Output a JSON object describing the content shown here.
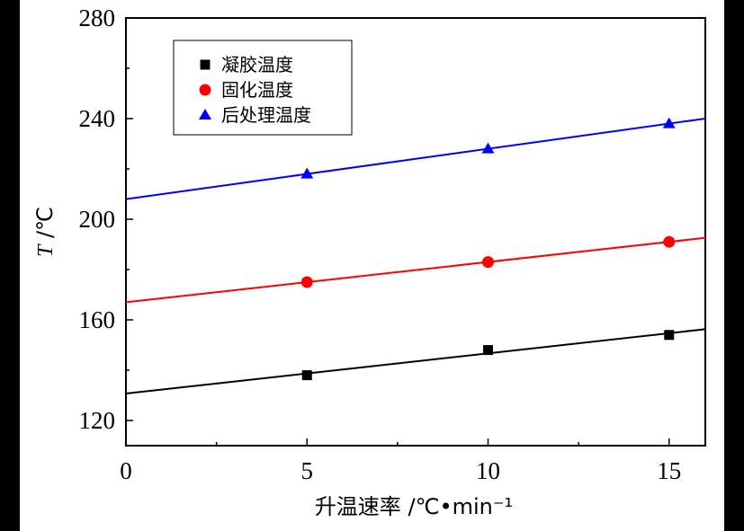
{
  "chart_data": {
    "type": "scatter",
    "xlabel": "升温速率 /℃•min⁻¹",
    "ylabel_italic": "T",
    "ylabel_unit": " /℃",
    "xlim": [
      0,
      16
    ],
    "ylim": [
      110,
      280
    ],
    "x_ticks": [
      0,
      5,
      10,
      15
    ],
    "x_minor_ticks": [
      2.5,
      7.5,
      12.5
    ],
    "y_ticks": [
      120,
      160,
      200,
      240,
      280
    ],
    "y_minor_ticks": [
      140,
      180,
      220,
      260
    ],
    "grid": false,
    "legend_position": "top-left",
    "series": [
      {
        "name": "凝胶温度",
        "marker": "square",
        "color": "#000000",
        "x": [
          5,
          10,
          15
        ],
        "y": [
          138,
          148,
          154
        ],
        "fit": {
          "intercept": 130.7,
          "slope": 1.6
        }
      },
      {
        "name": "固化温度",
        "marker": "circle",
        "color": "#ff0000",
        "x": [
          5,
          10,
          15
        ],
        "y": [
          175,
          183,
          191
        ],
        "fit": {
          "intercept": 167,
          "slope": 1.6
        }
      },
      {
        "name": "后处理温度",
        "marker": "triangle",
        "color": "#0000ff",
        "x": [
          5,
          10,
          15
        ],
        "y": [
          218,
          228,
          238
        ],
        "fit": {
          "intercept": 208,
          "slope": 2.0
        }
      }
    ]
  }
}
